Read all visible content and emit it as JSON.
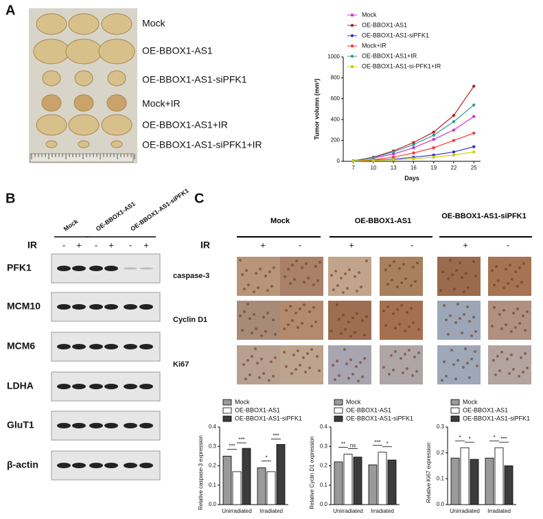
{
  "panels": {
    "a": "A",
    "b": "B",
    "c": "C"
  },
  "tumor_labels": [
    "Mock",
    "OE-BBOX1-AS1",
    "OE-BBOX1-AS1-siPFK1",
    "Mock+IR",
    "OE-BBOX1-AS1+IR",
    "OE-BBOX1-AS1-siPFK1+IR"
  ],
  "blot": {
    "groups": [
      "Mock",
      "OE-BBOX1-AS1",
      "OE-BBOX1-AS1-siPFK1"
    ],
    "ir_label": "IR",
    "ir_signs": [
      "-",
      "+",
      "-",
      "+",
      "-",
      "+"
    ],
    "proteins": [
      "PFK1",
      "MCM10",
      "MCM6",
      "LDHA",
      "GluT1",
      "β-actin"
    ]
  },
  "ihc": {
    "groups": [
      "Mock",
      "OE-BBOX1-AS1",
      "OE-BBOX1-AS1-siPFK1"
    ],
    "ir_label": "IR",
    "ir_signs": [
      "+",
      "-",
      "+",
      "-",
      "+",
      "-"
    ],
    "stains": [
      "caspase-3",
      "Cyclin D1",
      "Ki67"
    ]
  },
  "chart_data": [
    {
      "type": "line",
      "x_label": "Days",
      "y_label": "Tumor volumn (mm³)",
      "x": [
        7,
        10,
        13,
        16,
        19,
        22,
        25
      ],
      "xlim": [
        5.5,
        26
      ],
      "xticks": [
        7,
        10,
        13,
        16,
        19,
        22,
        25
      ],
      "ylim": [
        0,
        1000
      ],
      "yticks": [
        0,
        200,
        400,
        600,
        800,
        1000
      ],
      "series": [
        {
          "name": "Mock",
          "color": "#cc33cc",
          "values": [
            5,
            30,
            70,
            130,
            210,
            300,
            430
          ]
        },
        {
          "name": "OE-BBOX1-AS1",
          "color": "#b22222",
          "values": [
            5,
            40,
            100,
            180,
            280,
            440,
            720
          ]
        },
        {
          "name": "OE-BBOX1-AS1-siPFK1",
          "color": "#3333cc",
          "values": [
            3,
            10,
            20,
            40,
            60,
            90,
            140
          ]
        },
        {
          "name": "Mock+IR",
          "color": "#ff3333",
          "values": [
            3,
            15,
            40,
            80,
            130,
            200,
            270
          ]
        },
        {
          "name": "OE-BBOX1-AS1+IR",
          "color": "#339999",
          "values": [
            5,
            35,
            90,
            160,
            250,
            380,
            540
          ]
        },
        {
          "name": "OE-BBOX1-AS1-si-PFK1+IR",
          "color": "#cccc00",
          "values": [
            2,
            8,
            15,
            25,
            40,
            60,
            90
          ]
        }
      ]
    },
    {
      "type": "bar",
      "y_label": "Relative caspase-3 expression",
      "categories": [
        "Unirradiated",
        "Irradiated"
      ],
      "ylim": [
        0,
        0.4
      ],
      "yticks": [
        {
          "value": 0,
          "label": "0.0"
        },
        0.1,
        0.2,
        0.3,
        0.4
      ],
      "series": [
        {
          "name": "Mock",
          "color": "#9a9a9a",
          "values": [
            0.25,
            0.19
          ]
        },
        {
          "name": "OE-BBOX1-AS1",
          "color": "#ffffff",
          "values": [
            0.17,
            0.17
          ]
        },
        {
          "name": "OE-BBOX1-AS1-siPFK1",
          "color": "#3c3c3c",
          "values": [
            0.29,
            0.31
          ]
        }
      ],
      "significance": [
        [
          "***",
          "***"
        ],
        [
          "*",
          "***"
        ]
      ]
    },
    {
      "type": "bar",
      "y_label": "Relative Cyclin D1 expression",
      "categories": [
        "Unirradiated",
        "Irradiated"
      ],
      "ylim": [
        0,
        0.4
      ],
      "yticks": [
        {
          "value": 0,
          "label": "0.0"
        },
        0.1,
        0.2,
        0.3,
        0.4
      ],
      "series": [
        {
          "name": "Mock",
          "color": "#9a9a9a",
          "values": [
            0.22,
            0.205
          ]
        },
        {
          "name": "OE-BBOX1-AS1",
          "color": "#ffffff",
          "values": [
            0.26,
            0.27
          ]
        },
        {
          "name": "OE-BBOX1-AS1-siPFK1",
          "color": "#3c3c3c",
          "values": [
            0.245,
            0.23
          ]
        }
      ],
      "significance": [
        [
          "**",
          "ns"
        ],
        [
          "***",
          "*"
        ]
      ]
    },
    {
      "type": "bar",
      "y_label": "Relative Ki67 expression",
      "categories": [
        "Unirradiated",
        "Irradiated"
      ],
      "ylim": [
        0,
        0.3
      ],
      "yticks": [
        {
          "value": 0,
          "label": "0.0"
        },
        0.1,
        0.2,
        0.3
      ],
      "series": [
        {
          "name": "Mock",
          "color": "#9a9a9a",
          "values": [
            0.18,
            0.18
          ]
        },
        {
          "name": "OE-BBOX1-AS1",
          "color": "#ffffff",
          "values": [
            0.22,
            0.22
          ]
        },
        {
          "name": "OE-BBOX1-AS1-siPFK1",
          "color": "#3c3c3c",
          "values": [
            0.175,
            0.15
          ]
        }
      ],
      "significance": [
        [
          "*",
          "*"
        ],
        [
          "*",
          "***"
        ]
      ]
    }
  ]
}
